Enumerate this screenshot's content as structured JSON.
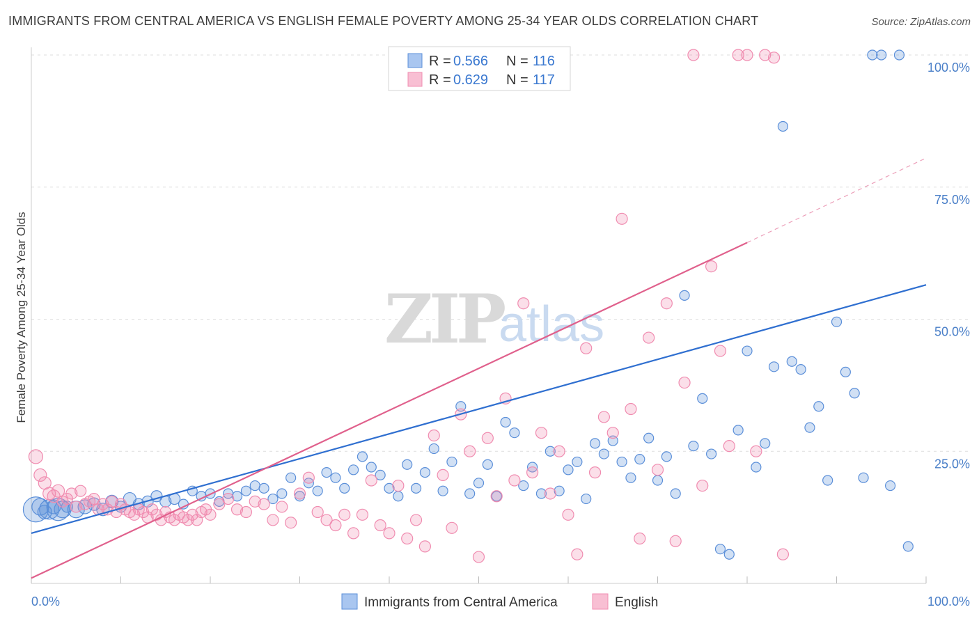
{
  "header": {
    "title": "IMMIGRANTS FROM CENTRAL AMERICA VS ENGLISH FEMALE POVERTY AMONG 25-34 YEAR OLDS CORRELATION CHART",
    "source": "Source: ZipAtlas.com"
  },
  "watermark": {
    "zip": "ZIP",
    "atlas": "atlas"
  },
  "legend": {
    "r_label": "R =",
    "n_label": "N =",
    "rows": [
      {
        "r": "0.566",
        "n": "116"
      },
      {
        "r": "0.629",
        "n": "117"
      }
    ]
  },
  "chart_data": {
    "type": "scatter",
    "title": "IMMIGRANTS FROM CENTRAL AMERICA VS ENGLISH FEMALE POVERTY AMONG 25-34 YEAR OLDS CORRELATION CHART",
    "xlabel": "",
    "ylabel": "Female Poverty Among 25-34 Year Olds",
    "xlim": [
      0,
      100
    ],
    "ylim": [
      0,
      100
    ],
    "x_tick_labels": [
      "0.0%",
      "100.0%"
    ],
    "y_tick_labels": [
      "25.0%",
      "50.0%",
      "75.0%",
      "100.0%"
    ],
    "y_tick_values": [
      25,
      50,
      75,
      100
    ],
    "colors": {
      "blue": "#5b8fd9",
      "pink": "#f08cb0",
      "blue_line": "#2f6fd0",
      "pink_line": "#e0608c"
    },
    "series": [
      {
        "name": "Immigrants from Central America",
        "color": "#5b8fd9",
        "r": 0.566,
        "n": 116,
        "trend": {
          "x0": 0,
          "y0": 9.5,
          "x1": 100,
          "y1": 56.5
        },
        "points": [
          [
            0.5,
            14,
            18
          ],
          [
            1,
            14.5,
            12
          ],
          [
            1.5,
            13.5,
            10
          ],
          [
            2,
            14,
            14
          ],
          [
            2.5,
            14.5,
            10
          ],
          [
            3,
            14,
            16
          ],
          [
            3.5,
            14,
            12
          ],
          [
            4,
            14.5,
            8
          ],
          [
            5,
            14,
            12
          ],
          [
            6,
            14.5,
            10
          ],
          [
            7,
            15,
            9
          ],
          [
            8,
            14,
            9
          ],
          [
            9,
            15.5,
            9
          ],
          [
            10,
            14.5,
            8
          ],
          [
            11,
            16,
            9
          ],
          [
            12,
            15,
            8
          ],
          [
            13,
            15.5,
            8
          ],
          [
            14,
            16.5,
            8
          ],
          [
            15,
            15.5,
            8
          ],
          [
            16,
            16,
            8
          ],
          [
            17,
            15,
            7
          ],
          [
            18,
            17.5,
            7
          ],
          [
            19,
            16.5,
            7
          ],
          [
            20,
            17,
            7
          ],
          [
            21,
            15.5,
            7
          ],
          [
            22,
            17,
            7
          ],
          [
            23,
            16.5,
            7
          ],
          [
            24,
            17.5,
            7
          ],
          [
            25,
            18.5,
            7
          ],
          [
            26,
            18,
            7
          ],
          [
            27,
            16,
            7
          ],
          [
            28,
            17,
            7
          ],
          [
            29,
            20,
            7
          ],
          [
            30,
            16.5,
            7
          ],
          [
            31,
            19,
            7
          ],
          [
            32,
            17.5,
            7
          ],
          [
            33,
            21,
            7
          ],
          [
            34,
            20,
            7
          ],
          [
            35,
            18,
            7
          ],
          [
            36,
            21.5,
            7
          ],
          [
            37,
            24,
            7
          ],
          [
            38,
            22,
            7
          ],
          [
            39,
            20.5,
            7
          ],
          [
            40,
            18,
            7
          ],
          [
            41,
            16.5,
            7
          ],
          [
            42,
            22.5,
            7
          ],
          [
            43,
            18,
            7
          ],
          [
            44,
            21,
            7
          ],
          [
            45,
            25.5,
            7
          ],
          [
            46,
            17.5,
            7
          ],
          [
            47,
            23,
            7
          ],
          [
            48,
            33.5,
            7
          ],
          [
            49,
            17,
            7
          ],
          [
            50,
            19,
            7
          ],
          [
            51,
            22.5,
            7
          ],
          [
            52,
            16.5,
            7
          ],
          [
            53,
            30.5,
            7
          ],
          [
            54,
            28.5,
            7
          ],
          [
            55,
            18.5,
            7
          ],
          [
            56,
            22,
            7
          ],
          [
            57,
            17,
            7
          ],
          [
            58,
            25,
            7
          ],
          [
            59,
            17.5,
            7
          ],
          [
            60,
            21.5,
            7
          ],
          [
            61,
            23,
            7
          ],
          [
            62,
            16,
            7
          ],
          [
            63,
            26.5,
            7
          ],
          [
            64,
            24.5,
            7
          ],
          [
            65,
            27,
            7
          ],
          [
            66,
            23,
            7
          ],
          [
            67,
            20,
            7
          ],
          [
            68,
            23.5,
            7
          ],
          [
            69,
            27.5,
            7
          ],
          [
            70,
            19.5,
            7
          ],
          [
            71,
            24,
            7
          ],
          [
            72,
            17,
            7
          ],
          [
            73,
            54.5,
            7
          ],
          [
            74,
            26,
            7
          ],
          [
            75,
            35,
            7
          ],
          [
            76,
            24.5,
            7
          ],
          [
            77,
            6.5,
            7
          ],
          [
            78,
            5.5,
            7
          ],
          [
            79,
            29,
            7
          ],
          [
            80,
            44,
            7
          ],
          [
            81,
            22,
            7
          ],
          [
            82,
            26.5,
            7
          ],
          [
            83,
            41,
            7
          ],
          [
            84,
            86.5,
            7
          ],
          [
            85,
            42,
            7
          ],
          [
            86,
            40.5,
            7
          ],
          [
            87,
            29.5,
            7
          ],
          [
            88,
            33.5,
            7
          ],
          [
            89,
            19.5,
            7
          ],
          [
            90,
            49.5,
            7
          ],
          [
            91,
            40,
            7
          ],
          [
            92,
            36,
            7
          ],
          [
            93,
            20,
            7
          ],
          [
            94,
            100,
            7
          ],
          [
            95,
            100,
            7
          ],
          [
            96,
            18.5,
            7
          ],
          [
            97,
            100,
            7
          ],
          [
            98,
            7,
            7
          ]
        ]
      },
      {
        "name": "English",
        "color": "#f08cb0",
        "r": 0.629,
        "n": 117,
        "trend": {
          "x0": 0,
          "y0": 1,
          "x1": 80,
          "y1": 64.5,
          "dash_x1": 100,
          "dash_y1": 80.5
        },
        "points": [
          [
            0.5,
            24,
            10
          ],
          [
            1,
            20.5,
            9
          ],
          [
            1.5,
            19,
            9
          ],
          [
            2,
            17,
            9
          ],
          [
            2.5,
            16.5,
            9
          ],
          [
            3,
            17.5,
            9
          ],
          [
            3.5,
            15.5,
            8
          ],
          [
            4,
            16,
            8
          ],
          [
            4.5,
            17,
            8
          ],
          [
            5,
            14.5,
            8
          ],
          [
            5.5,
            17.5,
            8
          ],
          [
            6,
            15,
            8
          ],
          [
            6.5,
            15.5,
            8
          ],
          [
            7,
            16,
            8
          ],
          [
            7.5,
            14,
            8
          ],
          [
            8,
            15,
            8
          ],
          [
            8.5,
            14,
            8
          ],
          [
            9,
            15.5,
            8
          ],
          [
            9.5,
            13.5,
            8
          ],
          [
            10,
            15,
            8
          ],
          [
            10.5,
            14,
            8
          ],
          [
            11,
            13.5,
            8
          ],
          [
            11.5,
            13,
            8
          ],
          [
            12,
            14,
            8
          ],
          [
            12.5,
            13.5,
            8
          ],
          [
            13,
            12.5,
            8
          ],
          [
            13.5,
            14,
            8
          ],
          [
            14,
            13,
            8
          ],
          [
            14.5,
            12,
            8
          ],
          [
            15,
            13.5,
            8
          ],
          [
            15.5,
            12.5,
            8
          ],
          [
            16,
            12,
            8
          ],
          [
            16.5,
            13,
            8
          ],
          [
            17,
            12.5,
            8
          ],
          [
            17.5,
            12,
            8
          ],
          [
            18,
            13,
            8
          ],
          [
            18.5,
            12,
            8
          ],
          [
            19,
            13.5,
            8
          ],
          [
            19.5,
            14,
            8
          ],
          [
            20,
            13,
            8
          ],
          [
            21,
            15,
            8
          ],
          [
            22,
            16,
            8
          ],
          [
            23,
            14,
            8
          ],
          [
            24,
            13.5,
            8
          ],
          [
            25,
            15.5,
            8
          ],
          [
            26,
            15,
            8
          ],
          [
            27,
            12,
            8
          ],
          [
            28,
            14.5,
            8
          ],
          [
            29,
            11.5,
            8
          ],
          [
            30,
            17,
            8
          ],
          [
            31,
            20,
            8
          ],
          [
            32,
            13.5,
            8
          ],
          [
            33,
            12,
            8
          ],
          [
            34,
            11,
            8
          ],
          [
            35,
            13,
            8
          ],
          [
            36,
            9.5,
            8
          ],
          [
            37,
            13,
            8
          ],
          [
            38,
            19.5,
            8
          ],
          [
            39,
            11,
            8
          ],
          [
            40,
            9.5,
            8
          ],
          [
            41,
            18.5,
            8
          ],
          [
            42,
            8.5,
            8
          ],
          [
            43,
            12,
            8
          ],
          [
            44,
            7,
            8
          ],
          [
            45,
            28,
            8
          ],
          [
            46,
            20.5,
            8
          ],
          [
            47,
            10.5,
            8
          ],
          [
            48,
            32,
            8
          ],
          [
            49,
            25,
            8
          ],
          [
            50,
            5,
            8
          ],
          [
            51,
            27.5,
            8
          ],
          [
            52,
            16.5,
            8
          ],
          [
            53,
            35,
            8
          ],
          [
            54,
            19.5,
            8
          ],
          [
            55,
            53,
            8
          ],
          [
            56,
            21,
            8
          ],
          [
            57,
            28.5,
            8
          ],
          [
            58,
            17,
            8
          ],
          [
            59,
            25,
            8
          ],
          [
            60,
            13,
            8
          ],
          [
            61,
            5.5,
            8
          ],
          [
            62,
            44.5,
            8
          ],
          [
            63,
            21,
            8
          ],
          [
            64,
            31.5,
            8
          ],
          [
            65,
            28.5,
            8
          ],
          [
            66,
            69,
            8
          ],
          [
            67,
            33,
            8
          ],
          [
            68,
            8.5,
            8
          ],
          [
            69,
            46.5,
            8
          ],
          [
            70,
            21.5,
            8
          ],
          [
            71,
            53,
            8
          ],
          [
            72,
            8,
            8
          ],
          [
            73,
            38,
            8
          ],
          [
            74,
            100,
            8
          ],
          [
            75,
            18.5,
            8
          ],
          [
            76,
            60,
            8
          ],
          [
            77,
            44,
            8
          ],
          [
            78,
            26,
            8
          ],
          [
            79,
            100,
            8
          ],
          [
            80,
            100,
            8
          ],
          [
            81,
            25,
            8
          ],
          [
            82,
            100,
            8
          ],
          [
            83,
            99.5,
            8
          ],
          [
            84,
            5.5,
            8
          ]
        ]
      }
    ]
  },
  "bottom_legend": [
    {
      "label": "Immigrants from Central America"
    },
    {
      "label": "English"
    }
  ]
}
